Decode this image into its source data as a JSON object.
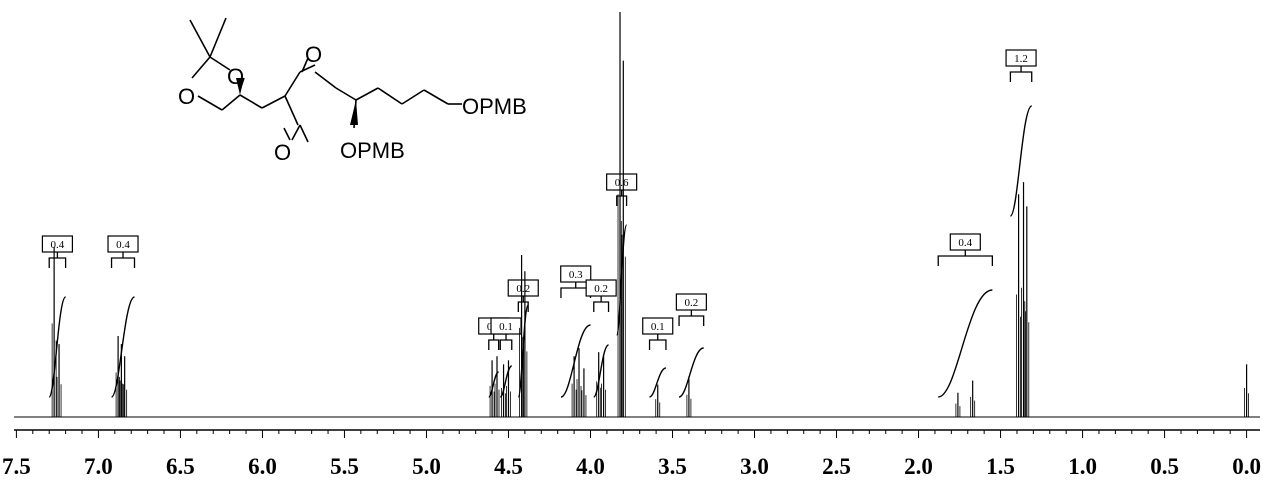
{
  "chart_data": {
    "type": "line",
    "xlim": [
      7.6,
      -0.1
    ],
    "x_reversed": true,
    "grid": false,
    "x_ticks": [
      "7.5",
      "7.0",
      "6.5",
      "6.0",
      "5.5",
      "5.0",
      "4.5",
      "4.0",
      "3.5",
      "3.0",
      "2.5",
      "2.0",
      "1.5",
      "1.0",
      "0.5",
      "0.0"
    ],
    "peaks": [
      {
        "shift": 7.27,
        "height": 0.42
      },
      {
        "shift": 7.24,
        "height": 0.18
      },
      {
        "shift": 6.88,
        "height": 0.2
      },
      {
        "shift": 6.86,
        "height": 0.18
      },
      {
        "shift": 6.84,
        "height": 0.15
      },
      {
        "shift": 4.6,
        "height": 0.14
      },
      {
        "shift": 4.57,
        "height": 0.15
      },
      {
        "shift": 4.53,
        "height": 0.13
      },
      {
        "shift": 4.5,
        "height": 0.14
      },
      {
        "shift": 4.42,
        "height": 0.4
      },
      {
        "shift": 4.4,
        "height": 0.36
      },
      {
        "shift": 4.1,
        "height": 0.15
      },
      {
        "shift": 4.07,
        "height": 0.17
      },
      {
        "shift": 4.04,
        "height": 0.12
      },
      {
        "shift": 3.95,
        "height": 0.16
      },
      {
        "shift": 3.92,
        "height": 0.15
      },
      {
        "shift": 3.82,
        "height": 1.0
      },
      {
        "shift": 3.8,
        "height": 0.88
      },
      {
        "shift": 3.59,
        "height": 0.08
      },
      {
        "shift": 3.4,
        "height": 0.1
      },
      {
        "shift": 1.76,
        "height": 0.06
      },
      {
        "shift": 1.67,
        "height": 0.09
      },
      {
        "shift": 1.39,
        "height": 0.55
      },
      {
        "shift": 1.36,
        "height": 0.58
      },
      {
        "shift": 1.34,
        "height": 0.52
      },
      {
        "shift": 0.0,
        "height": 0.13
      }
    ],
    "integrals": [
      {
        "label": "0.4",
        "from": 7.3,
        "to": 7.2
      },
      {
        "label": "0.4",
        "from": 6.92,
        "to": 6.78
      },
      {
        "label": "0.1",
        "from": 4.62,
        "to": 4.56
      },
      {
        "label": "0.1",
        "from": 4.55,
        "to": 4.48
      },
      {
        "label": "0.2",
        "from": 4.44,
        "to": 4.38
      },
      {
        "label": "0.3",
        "from": 4.18,
        "to": 4.0
      },
      {
        "label": "0.2",
        "from": 3.98,
        "to": 3.89
      },
      {
        "label": "0.6",
        "from": 3.84,
        "to": 3.78
      },
      {
        "label": "0.1",
        "from": 3.64,
        "to": 3.54
      },
      {
        "label": "0.2",
        "from": 3.46,
        "to": 3.31
      },
      {
        "label": "0.4",
        "from": 1.88,
        "to": 1.55
      },
      {
        "label": "1.2",
        "from": 1.44,
        "to": 1.31
      }
    ]
  },
  "structure": {
    "labels": [
      "O",
      "O",
      "O",
      "O",
      "OPMB",
      "OPMB"
    ]
  }
}
